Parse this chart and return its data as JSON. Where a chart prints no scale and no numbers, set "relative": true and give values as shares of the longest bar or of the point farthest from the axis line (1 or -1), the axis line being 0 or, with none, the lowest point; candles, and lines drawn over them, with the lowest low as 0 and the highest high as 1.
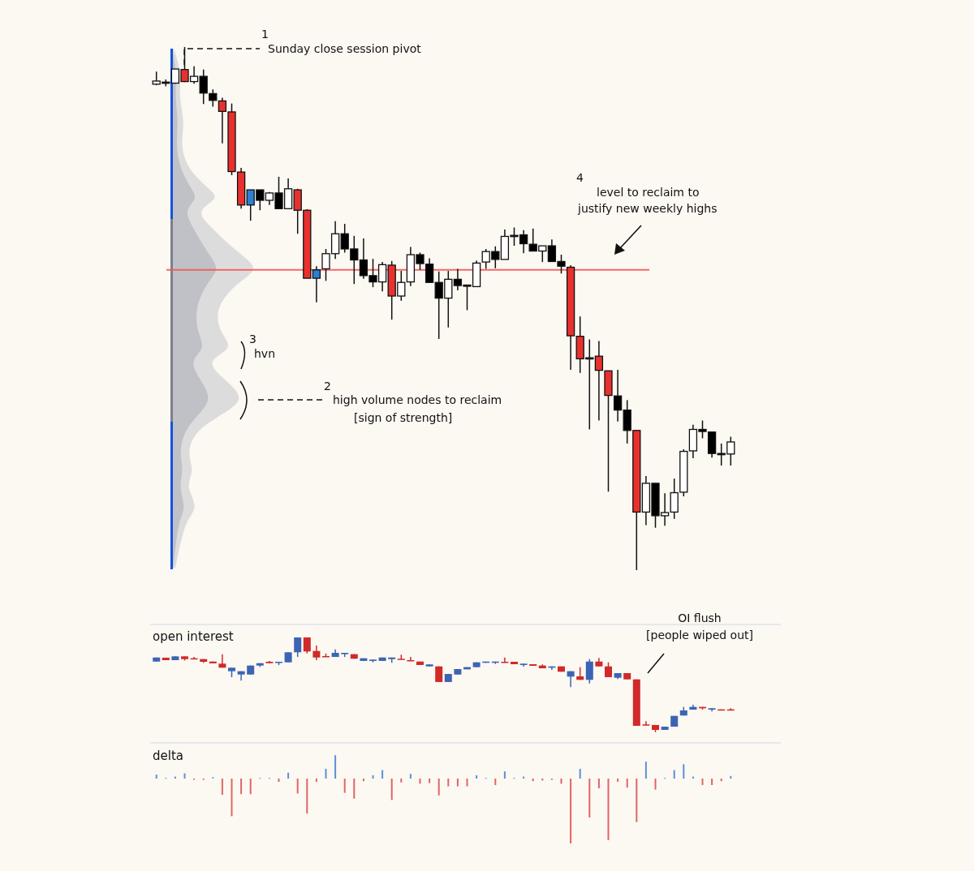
{
  "chart_data": [
    {
      "type": "candlestick",
      "relative": true,
      "categories": [
        null,
        null,
        null,
        null,
        null,
        null,
        null,
        null,
        null,
        null,
        null,
        null,
        null,
        null,
        null,
        null,
        null,
        null,
        null,
        null,
        null,
        null,
        null,
        null,
        null,
        null,
        null,
        null,
        null,
        null,
        null,
        null,
        null,
        null,
        null,
        null,
        null,
        null,
        null,
        null,
        null,
        null,
        null,
        null,
        null,
        null,
        null,
        null,
        null,
        null,
        null,
        null,
        null,
        null,
        null,
        null,
        null,
        null,
        null,
        null,
        null,
        null
      ],
      "ohlc": [
        [
          0.929,
          0.953,
          0.927,
          0.935
        ],
        [
          0.933,
          0.938,
          0.925,
          0.932
        ],
        [
          0.931,
          0.958,
          0.93,
          0.958
        ],
        [
          0.957,
          1.0,
          0.933,
          0.934
        ],
        [
          0.934,
          0.963,
          0.93,
          0.944
        ],
        [
          0.944,
          0.957,
          0.891,
          0.912
        ],
        [
          0.911,
          0.919,
          0.886,
          0.898
        ],
        [
          0.897,
          0.903,
          0.816,
          0.877
        ],
        [
          0.876,
          0.892,
          0.755,
          0.762
        ],
        [
          0.761,
          0.769,
          0.691,
          0.698
        ],
        [
          0.698,
          0.727,
          0.668,
          0.727
        ],
        [
          0.727,
          0.727,
          0.688,
          0.707
        ],
        [
          0.707,
          0.723,
          0.698,
          0.721
        ],
        [
          0.721,
          0.752,
          0.69,
          0.691
        ],
        [
          0.691,
          0.749,
          0.691,
          0.729
        ],
        [
          0.727,
          0.729,
          0.643,
          0.688
        ],
        [
          0.688,
          0.69,
          0.558,
          0.558
        ],
        [
          0.558,
          0.581,
          0.512,
          0.574
        ],
        [
          0.576,
          0.614,
          0.553,
          0.605
        ],
        [
          0.605,
          0.667,
          0.595,
          0.643
        ],
        [
          0.643,
          0.662,
          0.607,
          0.614
        ],
        [
          0.614,
          0.639,
          0.547,
          0.593
        ],
        [
          0.593,
          0.634,
          0.557,
          0.563
        ],
        [
          0.563,
          0.595,
          0.541,
          0.551
        ],
        [
          0.551,
          0.589,
          0.533,
          0.584
        ],
        [
          0.583,
          0.591,
          0.479,
          0.524
        ],
        [
          0.524,
          0.572,
          0.515,
          0.55
        ],
        [
          0.551,
          0.618,
          0.543,
          0.603
        ],
        [
          0.603,
          0.607,
          0.574,
          0.586
        ],
        [
          0.585,
          0.596,
          0.55,
          0.55
        ],
        [
          0.55,
          0.571,
          0.442,
          0.52
        ],
        [
          0.52,
          0.572,
          0.464,
          0.556
        ],
        [
          0.556,
          0.576,
          0.535,
          0.544
        ],
        [
          0.545,
          0.545,
          0.497,
          0.545
        ],
        [
          0.542,
          0.592,
          0.542,
          0.587
        ],
        [
          0.589,
          0.614,
          0.576,
          0.609
        ],
        [
          0.609,
          0.619,
          0.577,
          0.594
        ],
        [
          0.594,
          0.651,
          0.594,
          0.638
        ],
        [
          0.64,
          0.655,
          0.62,
          0.639
        ],
        [
          0.641,
          0.65,
          0.606,
          0.624
        ],
        [
          0.623,
          0.653,
          0.61,
          0.61
        ],
        [
          0.61,
          0.62,
          0.589,
          0.62
        ],
        [
          0.62,
          0.632,
          0.59,
          0.59
        ],
        [
          0.59,
          0.603,
          0.567,
          0.581
        ],
        [
          0.579,
          0.583,
          0.383,
          0.448
        ],
        [
          0.447,
          0.485,
          0.377,
          0.404
        ],
        [
          0.406,
          0.441,
          0.269,
          0.406
        ],
        [
          0.409,
          0.438,
          0.286,
          0.382
        ],
        [
          0.381,
          0.381,
          0.15,
          0.334
        ],
        [
          0.333,
          0.383,
          0.284,
          0.306
        ],
        [
          0.306,
          0.325,
          0.242,
          0.267
        ],
        [
          0.267,
          0.267,
          0.0,
          0.111
        ],
        [
          0.111,
          0.18,
          0.086,
          0.166
        ],
        [
          0.166,
          0.166,
          0.081,
          0.104
        ],
        [
          0.104,
          0.147,
          0.085,
          0.11
        ],
        [
          0.111,
          0.175,
          0.098,
          0.148
        ],
        [
          0.149,
          0.231,
          0.141,
          0.227
        ],
        [
          0.228,
          0.278,
          0.214,
          0.269
        ],
        [
          0.269,
          0.286,
          0.252,
          0.265
        ],
        [
          0.264,
          0.264,
          0.215,
          0.223
        ],
        [
          0.223,
          0.242,
          0.2,
          0.223
        ],
        [
          0.222,
          0.255,
          0.2,
          0.245
        ]
      ],
      "colors": [
        "#ffffff",
        "#000000",
        "#ffffff",
        "#e8312f",
        "#ffffff",
        "#000000",
        "#000000",
        "#e8312f",
        "#e8312f",
        "#e8312f",
        "#2b7fd4",
        "#000000",
        "#ffffff",
        "#000000",
        "#ffffff",
        "#e8312f",
        "#e8312f",
        "#2b7fd4",
        "#ffffff",
        "#ffffff",
        "#000000",
        "#000000",
        "#000000",
        "#000000",
        "#ffffff",
        "#e8312f",
        "#ffffff",
        "#ffffff",
        "#000000",
        "#000000",
        "#000000",
        "#ffffff",
        "#000000",
        "#000000",
        "#ffffff",
        "#ffffff",
        "#000000",
        "#ffffff",
        "#000000",
        "#000000",
        "#000000",
        "#ffffff",
        "#000000",
        "#000000",
        "#e8312f",
        "#e8312f",
        "#2b7fd4",
        "#e8312f",
        "#e8312f",
        "#000000",
        "#000000",
        "#e8312f",
        "#ffffff",
        "#000000",
        "#ffffff",
        "#ffffff",
        "#ffffff",
        "#ffffff",
        "#000000",
        "#000000",
        "#000000",
        "#ffffff"
      ],
      "ref_lines": [
        {
          "axis": "y",
          "value": 0.574,
          "color": "#f05a5a"
        }
      ],
      "annotations": [
        "1",
        "Sunday close session pivot",
        "2",
        "high volume nodes to reclaim",
        "[sign of strength]",
        "3",
        "hvn",
        "4",
        "level to reclaim to",
        "justify new weekly highs"
      ]
    },
    {
      "type": "candlestick",
      "relative": true,
      "title": "open interest",
      "categories": [
        null,
        null,
        null,
        null,
        null,
        null,
        null,
        null,
        null,
        null,
        null,
        null,
        null,
        null,
        null,
        null,
        null,
        null,
        null,
        null,
        null,
        null,
        null,
        null,
        null,
        null,
        null,
        null,
        null,
        null,
        null,
        null,
        null,
        null,
        null,
        null,
        null,
        null,
        null,
        null,
        null,
        null,
        null,
        null,
        null,
        null,
        null,
        null,
        null,
        null,
        null,
        null,
        null,
        null,
        null,
        null,
        null,
        null,
        null,
        null,
        null,
        null
      ],
      "ohlc": [
        [
          0.745,
          0.788,
          0.745,
          0.788
        ],
        [
          0.786,
          0.786,
          0.76,
          0.76
        ],
        [
          0.76,
          0.8,
          0.76,
          0.8
        ],
        [
          0.8,
          0.8,
          0.757,
          0.771
        ],
        [
          0.78,
          0.794,
          0.771,
          0.771
        ],
        [
          0.771,
          0.771,
          0.732,
          0.743
        ],
        [
          0.745,
          0.745,
          0.726,
          0.726
        ],
        [
          0.723,
          0.823,
          0.68,
          0.68
        ],
        [
          0.643,
          0.68,
          0.58,
          0.68
        ],
        [
          0.608,
          0.643,
          0.543,
          0.643
        ],
        [
          0.608,
          0.703,
          0.608,
          0.703
        ],
        [
          0.703,
          0.728,
          0.689,
          0.728
        ],
        [
          0.743,
          0.752,
          0.728,
          0.728
        ],
        [
          0.732,
          0.743,
          0.709,
          0.743
        ],
        [
          0.737,
          0.843,
          0.737,
          0.843
        ],
        [
          0.843,
          1.0,
          0.794,
          1.0
        ],
        [
          1.0,
          1.0,
          0.831,
          0.852
        ],
        [
          0.857,
          0.914,
          0.76,
          0.788
        ],
        [
          0.803,
          0.829,
          0.794,
          0.794
        ],
        [
          0.794,
          0.874,
          0.794,
          0.837
        ],
        [
          0.823,
          0.837,
          0.794,
          0.837
        ],
        [
          0.823,
          0.823,
          0.775,
          0.775
        ],
        [
          0.752,
          0.78,
          0.752,
          0.78
        ],
        [
          0.752,
          0.766,
          0.737,
          0.766
        ],
        [
          0.752,
          0.788,
          0.752,
          0.788
        ],
        [
          0.771,
          0.788,
          0.732,
          0.788
        ],
        [
          0.775,
          0.817,
          0.766,
          0.766
        ],
        [
          0.76,
          0.794,
          0.752,
          0.752
        ],
        [
          0.745,
          0.745,
          0.709,
          0.709
        ],
        [
          0.694,
          0.715,
          0.694,
          0.715
        ],
        [
          0.694,
          0.694,
          0.529,
          0.529
        ],
        [
          0.529,
          0.614,
          0.529,
          0.614
        ],
        [
          0.608,
          0.666,
          0.608,
          0.666
        ],
        [
          0.663,
          0.686,
          0.663,
          0.686
        ],
        [
          0.686,
          0.737,
          0.686,
          0.737
        ],
        [
          0.732,
          0.745,
          0.732,
          0.745
        ],
        [
          0.732,
          0.745,
          0.72,
          0.745
        ],
        [
          0.743,
          0.788,
          0.732,
          0.732
        ],
        [
          0.743,
          0.743,
          0.717,
          0.717
        ],
        [
          0.709,
          0.723,
          0.692,
          0.723
        ],
        [
          0.717,
          0.717,
          0.7,
          0.7
        ],
        [
          0.703,
          0.715,
          0.674,
          0.674
        ],
        [
          0.68,
          0.694,
          0.657,
          0.694
        ],
        [
          0.694,
          0.694,
          0.638,
          0.638
        ],
        [
          0.586,
          0.643,
          0.475,
          0.643
        ],
        [
          0.589,
          0.686,
          0.552,
          0.552
        ],
        [
          0.552,
          0.771,
          0.514,
          0.745
        ],
        [
          0.745,
          0.783,
          0.694,
          0.694
        ],
        [
          0.694,
          0.737,
          0.58,
          0.58
        ],
        [
          0.574,
          0.623,
          0.56,
          0.623
        ],
        [
          0.623,
          0.623,
          0.557,
          0.557
        ],
        [
          0.557,
          0.557,
          0.066,
          0.066
        ],
        [
          0.081,
          0.115,
          0.072,
          0.072
        ],
        [
          0.075,
          0.075,
          0.0,
          0.023
        ],
        [
          0.023,
          0.057,
          0.023,
          0.057
        ],
        [
          0.057,
          0.171,
          0.057,
          0.171
        ],
        [
          0.175,
          0.266,
          0.175,
          0.229
        ],
        [
          0.237,
          0.289,
          0.237,
          0.266
        ],
        [
          0.266,
          0.266,
          0.237,
          0.252
        ],
        [
          0.237,
          0.252,
          0.218,
          0.252
        ],
        [
          0.24,
          0.24,
          0.229,
          0.229
        ],
        [
          0.24,
          0.252,
          0.229,
          0.229
        ]
      ],
      "colors": [
        "#3c64b4",
        "#d02a2a",
        "#3c64b4",
        "#d02a2a",
        "#d02a2a",
        "#d02a2a",
        "#d02a2a",
        "#d02a2a",
        "#3c64b4",
        "#3c64b4",
        "#3c64b4",
        "#3c64b4",
        "#d02a2a",
        "#3c64b4",
        "#3c64b4",
        "#3c64b4",
        "#d02a2a",
        "#d02a2a",
        "#d02a2a",
        "#3c64b4",
        "#3c64b4",
        "#d02a2a",
        "#3c64b4",
        "#3c64b4",
        "#3c64b4",
        "#3c64b4",
        "#d02a2a",
        "#d02a2a",
        "#d02a2a",
        "#3c64b4",
        "#d02a2a",
        "#3c64b4",
        "#3c64b4",
        "#3c64b4",
        "#3c64b4",
        "#3c64b4",
        "#3c64b4",
        "#d02a2a",
        "#d02a2a",
        "#3c64b4",
        "#d02a2a",
        "#d02a2a",
        "#3c64b4",
        "#d02a2a",
        "#3c64b4",
        "#d02a2a",
        "#3c64b4",
        "#d02a2a",
        "#d02a2a",
        "#3c64b4",
        "#d02a2a",
        "#d02a2a",
        "#d02a2a",
        "#d02a2a",
        "#3c64b4",
        "#3c64b4",
        "#3c64b4",
        "#3c64b4",
        "#d02a2a",
        "#3c64b4",
        "#d02a2a",
        "#d02a2a"
      ],
      "annotations": [
        "OI flush",
        "[people wiped out]"
      ]
    },
    {
      "type": "bar",
      "relative": true,
      "title": "delta",
      "categories": [
        null,
        null,
        null,
        null,
        null,
        null,
        null,
        null,
        null,
        null,
        null,
        null,
        null,
        null,
        null,
        null,
        null,
        null,
        null,
        null,
        null,
        null,
        null,
        null,
        null,
        null,
        null,
        null,
        null,
        null,
        null,
        null,
        null,
        null,
        null,
        null,
        null,
        null,
        null,
        null,
        null,
        null,
        null,
        null,
        null,
        null,
        null,
        null,
        null,
        null,
        null,
        null,
        null,
        null,
        null,
        null,
        null,
        null,
        null,
        null,
        null,
        null
      ],
      "values": [
        0.06,
        0.01,
        0.03,
        0.08,
        -0.02,
        -0.02,
        0.02,
        -0.25,
        -0.58,
        -0.24,
        -0.24,
        0.01,
        0.01,
        -0.05,
        0.09,
        -0.23,
        -0.54,
        -0.05,
        0.15,
        0.36,
        -0.22,
        -0.31,
        -0.04,
        0.05,
        0.13,
        -0.33,
        -0.06,
        0.07,
        -0.08,
        -0.07,
        -0.26,
        -0.12,
        -0.12,
        -0.12,
        0.05,
        0.01,
        -0.1,
        0.11,
        0.01,
        0.03,
        -0.04,
        -0.03,
        -0.02,
        -0.08,
        -1,
        0.15,
        -0.6,
        -0.15,
        -0.95,
        -0.05,
        -0.14,
        -0.67,
        0.26,
        -0.17,
        0.01,
        0.13,
        0.22,
        0.03,
        -0.1,
        -0.1,
        -0.04,
        0.04
      ],
      "colors": [
        "#5b8fd9",
        "#5b8fd9",
        "#5b8fd9",
        "#5b8fd9",
        "#e06666",
        "#e06666",
        "#5b8fd9",
        "#e06666",
        "#e06666",
        "#e06666",
        "#e06666",
        "#5b8fd9",
        "#5b8fd9",
        "#e06666",
        "#5b8fd9",
        "#e06666",
        "#e06666",
        "#e06666",
        "#5b8fd9",
        "#5b8fd9",
        "#e06666",
        "#e06666",
        "#e06666",
        "#5b8fd9",
        "#5b8fd9",
        "#e06666",
        "#e06666",
        "#5b8fd9",
        "#e06666",
        "#e06666",
        "#e06666",
        "#e06666",
        "#e06666",
        "#e06666",
        "#5b8fd9",
        "#5b8fd9",
        "#e06666",
        "#5b8fd9",
        "#5b8fd9",
        "#5b8fd9",
        "#e06666",
        "#e06666",
        "#e06666",
        "#e06666",
        "#e06666",
        "#5b8fd9",
        "#e06666",
        "#e06666",
        "#e06666",
        "#e06666",
        "#e06666",
        "#e06666",
        "#5b8fd9",
        "#e06666",
        "#5b8fd9",
        "#5b8fd9",
        "#5b8fd9",
        "#5b8fd9",
        "#e06666",
        "#e06666",
        "#e06666",
        "#5b8fd9"
      ]
    }
  ]
}
